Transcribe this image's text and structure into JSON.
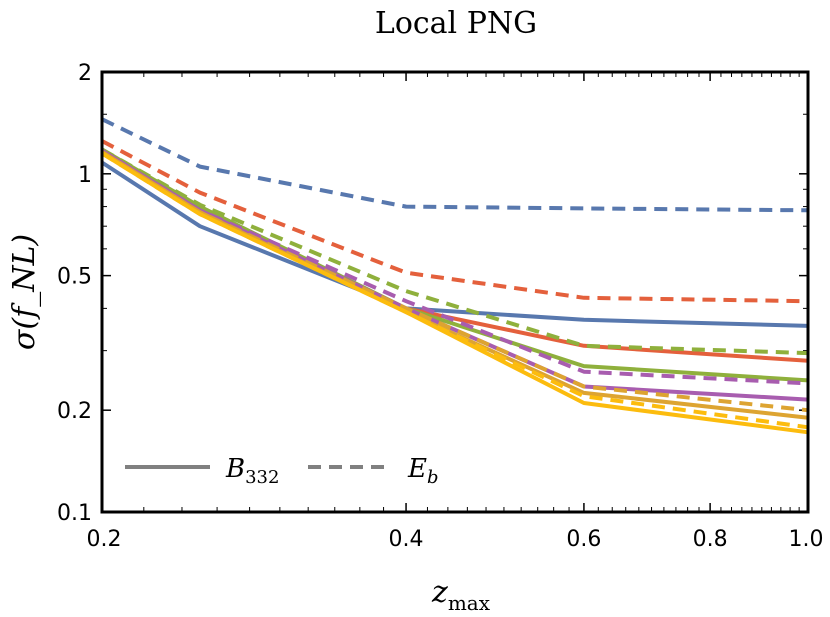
{
  "chart_data": {
    "type": "line",
    "title": "Local PNG",
    "xlabel": "z_max",
    "xlabel_main": "z",
    "xlabel_sub": "max",
    "ylabel": "σ(f_NL)",
    "xscale": "log",
    "yscale": "log",
    "xlim": [
      0.2,
      1.0
    ],
    "ylim": [
      0.1,
      2.0
    ],
    "xticks": [
      0.2,
      0.4,
      0.6,
      0.8,
      1.0
    ],
    "xtick_labels": [
      "0.2",
      "0.4",
      "0.6",
      "0.8",
      "1.0"
    ],
    "yticks": [
      0.1,
      0.2,
      0.5,
      1,
      2
    ],
    "ytick_labels": [
      "0.1",
      "0.2",
      "0.5",
      "1",
      "2"
    ],
    "x": [
      0.2,
      0.25,
      0.4,
      0.6,
      1.0
    ],
    "series": [
      {
        "name": "blue B332",
        "style": "solid",
        "color": "#5878ae",
        "values": [
          1.08,
          0.7,
          0.4,
          0.37,
          0.355
        ]
      },
      {
        "name": "blue Eb",
        "style": "dashed",
        "color": "#5878ae",
        "values": [
          1.45,
          1.05,
          0.8,
          0.79,
          0.78
        ]
      },
      {
        "name": "red B332",
        "style": "solid",
        "color": "#e4603c",
        "values": [
          1.15,
          0.78,
          0.4,
          0.31,
          0.28
        ]
      },
      {
        "name": "red Eb",
        "style": "dashed",
        "color": "#e4603c",
        "values": [
          1.25,
          0.88,
          0.51,
          0.43,
          0.42
        ]
      },
      {
        "name": "green B332",
        "style": "solid",
        "color": "#8fb03c",
        "values": [
          1.18,
          0.8,
          0.4,
          0.27,
          0.245
        ]
      },
      {
        "name": "green Eb",
        "style": "dashed",
        "color": "#8fb03c",
        "values": [
          1.18,
          0.81,
          0.45,
          0.31,
          0.295
        ]
      },
      {
        "name": "purple B332",
        "style": "solid",
        "color": "#a85daf",
        "values": [
          1.17,
          0.78,
          0.4,
          0.235,
          0.215
        ]
      },
      {
        "name": "purple Eb",
        "style": "dashed",
        "color": "#a85daf",
        "values": [
          1.17,
          0.78,
          0.42,
          0.26,
          0.24
        ]
      },
      {
        "name": "orange B332",
        "style": "solid",
        "color": "#dda431",
        "values": [
          1.16,
          0.77,
          0.39,
          0.225,
          0.19
        ]
      },
      {
        "name": "orange Eb",
        "style": "dashed",
        "color": "#dda431",
        "values": [
          1.16,
          0.77,
          0.4,
          0.235,
          0.2
        ]
      },
      {
        "name": "yellow B332",
        "style": "solid",
        "color": "#fcbc0e",
        "values": [
          1.15,
          0.76,
          0.39,
          0.21,
          0.172
        ]
      },
      {
        "name": "yellow Eb",
        "style": "dashed",
        "color": "#fcbc0e",
        "values": [
          1.15,
          0.76,
          0.39,
          0.22,
          0.178
        ]
      }
    ],
    "legend": {
      "placement": "bottom-left",
      "color": "#808080",
      "entries": [
        {
          "label_main": "B",
          "label_sub": "332",
          "style": "solid"
        },
        {
          "label_main": "E",
          "label_sub": "b",
          "style": "dashed"
        }
      ]
    }
  }
}
